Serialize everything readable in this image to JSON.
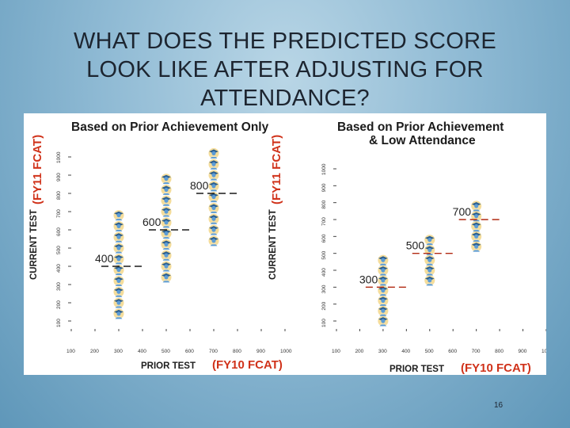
{
  "slide": {
    "title_lines": [
      "WHAT DOES THE PREDICTED SCORE",
      "LOOK LIKE AFTER ADJUSTING FOR",
      "ATTENDANCE?"
    ],
    "page_number": "16"
  },
  "colors": {
    "red_text": "#d0321a",
    "dash_black": "#1a1a1a",
    "dash_red": "#b22a12",
    "student_blue": "#5b9bd5",
    "student_yellow": "#f2d27a"
  },
  "icons": {
    "marker": "student-icon"
  },
  "chart_data": [
    {
      "type": "scatter",
      "title_lines": [
        "Based on Prior Achievement Only"
      ],
      "xlabel_parts": [
        "PRIOR TEST",
        "(FY10 FCAT)"
      ],
      "ylabel_parts": [
        "CURRENT TEST",
        "(FY11 FCAT)"
      ],
      "xlim": [
        100,
        1000
      ],
      "ylim": [
        100,
        1000
      ],
      "x_ticks": [
        "100",
        "200",
        "300",
        "400",
        "500",
        "600",
        "700",
        "800",
        "900",
        "1000"
      ],
      "y_ticks": [
        "100",
        "200",
        "300",
        "400",
        "500",
        "600",
        "700",
        "800",
        "900",
        "1000"
      ],
      "groups": [
        {
          "x": 300,
          "predicted": 400,
          "label": "400",
          "icon_y": [
            140,
            200,
            260,
            320,
            380,
            440,
            500,
            560,
            620,
            680
          ]
        },
        {
          "x": 500,
          "predicted": 600,
          "label": "600",
          "icon_y": [
            340,
            400,
            460,
            520,
            580,
            640,
            700,
            760,
            820,
            880
          ]
        },
        {
          "x": 700,
          "predicted": 800,
          "label": "800",
          "icon_y": [
            540,
            600,
            660,
            720,
            780,
            840,
            900,
            960,
            1020
          ]
        }
      ],
      "dash_color": "black"
    },
    {
      "type": "scatter",
      "title_lines": [
        "Based on Prior Achievement",
        "& Low Attendance"
      ],
      "xlabel_parts": [
        "PRIOR TEST",
        "(FY10 FCAT)"
      ],
      "ylabel_parts": [
        "CURRENT TEST",
        "(FY11 FCAT)"
      ],
      "xlim": [
        100,
        1000
      ],
      "ylim": [
        100,
        1000
      ],
      "x_ticks": [
        "100",
        "200",
        "300",
        "400",
        "500",
        "600",
        "700",
        "800",
        "900",
        "1000"
      ],
      "y_ticks": [
        "100",
        "200",
        "300",
        "400",
        "500",
        "600",
        "700",
        "800",
        "900",
        "1000"
      ],
      "groups": [
        {
          "x": 300,
          "predicted": 300,
          "label": "300",
          "icon_y": [
            100,
            160,
            220,
            280,
            340,
            400,
            460
          ]
        },
        {
          "x": 500,
          "predicted": 500,
          "label": "500",
          "icon_y": [
            340,
            400,
            460,
            520,
            580
          ]
        },
        {
          "x": 700,
          "predicted": 700,
          "label": "700",
          "icon_y": [
            540,
            600,
            660,
            720,
            780
          ]
        }
      ],
      "dash_color": "red"
    }
  ]
}
